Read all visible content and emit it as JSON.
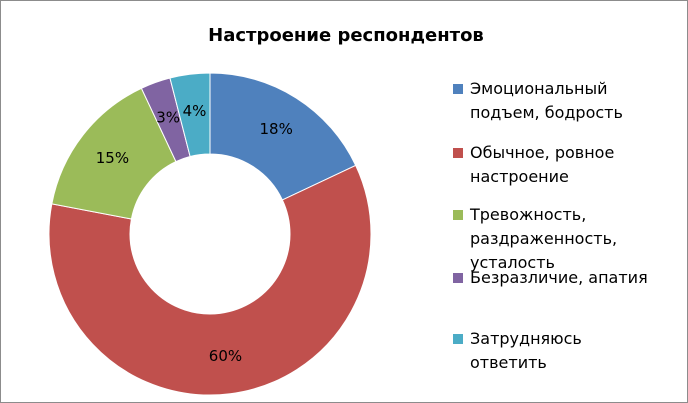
{
  "chart_data": {
    "type": "donut",
    "title": "Настроение респондентов",
    "categories": [
      "Эмоциональный подъем, бодрость",
      "Обычное, ровное настроение",
      "Тревожность, раздраженность, усталость",
      "Безразличие, апатия",
      "Затрудняюсь ответить"
    ],
    "values": [
      18,
      60,
      15,
      3,
      4
    ],
    "value_labels": [
      "18%",
      "60%",
      "15%",
      "3%",
      "4%"
    ],
    "colors": [
      "#4f81bd",
      "#c0504d",
      "#9bbb59",
      "#8064a2",
      "#4bacc6"
    ],
    "legend": "right"
  }
}
